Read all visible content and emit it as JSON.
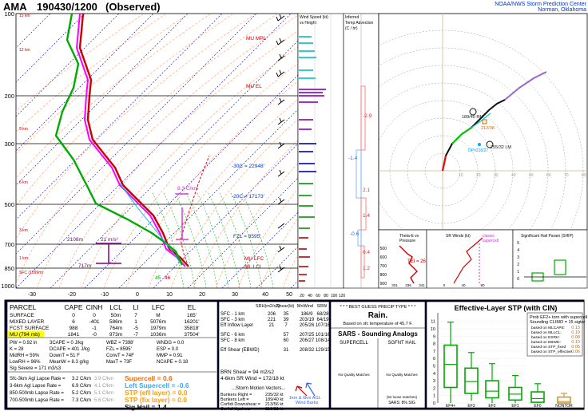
{
  "header": {
    "station": "AMA",
    "datetime": "190430/1200",
    "status": "(Observed)",
    "org_line1": "NOAA/NWS Storm Prediction Center",
    "org_line2": "Norman, Oklahoma"
  },
  "skewt": {
    "pressure_labels": [
      "100",
      "200",
      "300",
      "500",
      "700",
      "850",
      "1000"
    ],
    "temp_labels": [
      "-30",
      "-20",
      "-10",
      "0",
      "10",
      "20",
      "30",
      "40",
      "50"
    ],
    "height_labels": [
      "15 km",
      "12 km",
      "9 km",
      "6 km",
      "3 km",
      "1 km"
    ],
    "sfc_label": "SFC (1099m)",
    "annotations": {
      "mu_mpl": "MU MPL",
      "mu_el": "MU EL",
      "iso30": "-30C = 22948'",
      "iso20": "-20C = 17173'",
      "fzl": "FZL = 8595'",
      "mu_lfc": "MU LFC",
      "ml_lcl": "ML LCL",
      "cape_rate_top": "8.3 C/km",
      "cape_rate_low": "21 m/s²",
      "h2108": "2108m",
      "h717": "717m",
      "td_label": "45",
      "t_label": "46"
    }
  },
  "wind_panel": {
    "title_l1": "Wind Speed (kt)",
    "title_l2": "vs Height",
    "ticks": [
      "20",
      "40",
      "60",
      "80",
      "100",
      "120"
    ]
  },
  "advection_panel": {
    "title_l1": "Inferred",
    "title_l2": "Temp Advection",
    "title_l3": "(C / hr)",
    "values": [
      "-2.9",
      "-1.4",
      "2.1",
      "1.4",
      "-0.6",
      "0.4",
      "1.2"
    ]
  },
  "hodograph": {
    "ring_labels": [
      "10",
      "20",
      "30",
      "40",
      "50",
      "60",
      "70",
      "80"
    ],
    "bunkers_r": "189/40 RM",
    "lm": "255/32 LM",
    "srh_pt": "212/38",
    "dp_label": "DP=218/27"
  },
  "theta_panel": {
    "title_l1": "Theta-E vs",
    "title_l2": "Pressure",
    "x_ticks": [
      "331",
      "336",
      "341"
    ],
    "y_ticks": [
      "500",
      "600",
      "700",
      "800",
      "900"
    ],
    "value": "TEI = 26"
  },
  "sr_panel": {
    "title": "SR Winds (kt)",
    "label_l1": "classic",
    "label_l2": "supercell",
    "x_ticks": [
      "0",
      "40",
      "80"
    ]
  },
  "ship_panel": {
    "title": "Significant Hail Param (SHIP)",
    "y_ticks": [
      "5",
      "4",
      "3",
      "2",
      "1",
      "0"
    ]
  },
  "parcel_table": {
    "headers": [
      "PARCEL",
      "CAPE",
      "CINH",
      "LCL",
      "LI",
      "LFC",
      "EL"
    ],
    "rows": [
      [
        "SURFACE",
        "0",
        "0",
        "50m",
        "7",
        "M",
        "165'"
      ],
      [
        "MIXED LAYER",
        "6",
        "-401",
        "586m",
        "1",
        "5076m",
        "16201'"
      ],
      [
        "FCST SURFACE",
        "988",
        "-1",
        "764m",
        "-5",
        "1979m",
        "35818'"
      ],
      [
        "MU (794 mb)",
        "1841",
        "-0",
        "973m",
        "-7",
        "1036m",
        "37504'"
      ]
    ],
    "indices": [
      [
        "PW = 0.92 in",
        "3CAPE = 0 J/kg",
        "WBZ = 7398'",
        "WNDG = 0.0"
      ],
      [
        "K = 28",
        "DCAPE = 401 J/kg",
        "FZL = 8595'",
        "ESP = 0.0"
      ],
      [
        "MidRH = 59%",
        "DownT = 51 F",
        "ConvT = 74F",
        "MMP = 0.91"
      ],
      [
        "LowRH = 96%",
        "MeanW = 8.3 g/kg",
        "MaxT = 73F",
        "NCAPE = 0.18"
      ]
    ],
    "sig_severe": "Sig Severe = 171 m3/s3",
    "lapse": [
      [
        "Sfc-3km Agl Lapse Rate =",
        "3.2 C/km",
        "3.9 C/km"
      ],
      [
        "3-6km Agl Lapse Rate =",
        "6.9 C/km",
        "4.1 C/km"
      ],
      [
        "850-500mb Lapse Rate =",
        "5.2 C/km",
        "5.1 C/km"
      ],
      [
        "700-500mb Lapse Rate =",
        "7.3 C/km",
        "5.6 C/km"
      ]
    ],
    "composites": [
      {
        "label": "Supercell = 0.6",
        "color": "#ff6600"
      },
      {
        "label": "Left Supercell = -0.6",
        "color": "#33aaff"
      },
      {
        "label": "STP (eff layer) = 0.0",
        "color": "#ff9900"
      },
      {
        "label": "STP (fix layer) = 0.0",
        "color": "#ff9900"
      },
      {
        "label": "Sig Hail = 1.4",
        "color": "#111111"
      }
    ]
  },
  "kinematics": {
    "headers": [
      "SRH(m2/s2)",
      "Shear(kt)",
      "MnWind",
      "SRW"
    ],
    "rows": [
      [
        "SFC - 1 km",
        "206",
        "35",
        "186/9",
        "68/28"
      ],
      [
        "SFC - 3 km",
        "221",
        "39",
        "203/19",
        "64/19"
      ],
      [
        "Eff Inflow Layer",
        "21",
        "7",
        "205/26",
        "107/16"
      ],
      [
        "SFC - 6 km",
        "",
        "57",
        "207/25",
        "101/16"
      ],
      [
        "SFC - 8 km",
        "",
        "60",
        "206/27",
        "108/14"
      ],
      [
        "Eff Shear (EBWD)",
        "",
        "31",
        "208/32",
        "129/15"
      ]
    ],
    "brn": "BRN Shear = 94 m2/s2",
    "sr_wind": "4-6km SR Wind =     172/18 kt",
    "smv_title": "...Storm Motion Vectors...",
    "motions": [
      [
        "Bunkers Right =",
        "235/32 kt"
      ],
      [
        "Bunkers Left =",
        "189/40 kt"
      ],
      [
        "Corfidi Downshear =",
        "213/56 kt"
      ],
      [
        "Corfidi Upshear =",
        "218/21 kt"
      ]
    ],
    "barb_legend_l1": "1km & 6km AGL",
    "barb_legend_l2": "Wind Barbs"
  },
  "precip": {
    "title": "* * * BEST GUESS PRECIP TYPE * * *",
    "type": "Rain.",
    "basis": "Based on sfc temperature of 45.7 F.",
    "sars_title": "SARS - Sounding Analogs",
    "col1": "SUPERCELL",
    "col2": "SGFNT HAIL",
    "no_match1": "No Quality Matches",
    "no_match2": "No Quality Matches",
    "loose": "(52 loose matches)",
    "sars_sig": "SARS: 8% SIG"
  },
  "stp_panel": {
    "title": "Effective-Layer STP (with CIN)",
    "prob_l1": "Prob EF2+ torn with supercell",
    "prob_l2": "Sounding CLIMO = 15 sigtor",
    "based": [
      {
        "label": "based on MLCAPE:",
        "value": "0.13"
      },
      {
        "label": "based on MLLCL:",
        "value": "0.19"
      },
      {
        "label": "based on ESRH:",
        "value": "0.08"
      },
      {
        "label": "based on EBWD:",
        "value": "0.10"
      },
      {
        "label": "based on STP_fixed",
        "value": "0.05"
      },
      {
        "label": "based on STP_effective",
        "value": "0.06"
      }
    ],
    "y_ticks": [
      "11",
      "10",
      "9",
      "8",
      "7",
      "6",
      "5",
      "4",
      "3",
      "2",
      "1",
      "0"
    ],
    "categories": [
      "EF4+",
      "EF3",
      "EF2",
      "EF1",
      "EF0",
      "NONTOR"
    ],
    "boxes": [
      {
        "min": 0.0,
        "q1": 2.1,
        "median": 5.2,
        "q3": 7.8,
        "max": 10.9
      },
      {
        "min": 0.3,
        "q1": 1.3,
        "median": 2.9,
        "q3": 4.7,
        "max": 6.8
      },
      {
        "min": 0.0,
        "q1": 0.7,
        "median": 1.6,
        "q3": 3.0,
        "max": 5.3
      },
      {
        "min": 0.0,
        "q1": 0.4,
        "median": 1.2,
        "q3": 2.1,
        "max": 3.7
      },
      {
        "min": 0.0,
        "q1": 0.1,
        "median": 0.6,
        "q3": 1.5,
        "max": 2.6
      },
      {
        "min": 0.0,
        "q1": 0.0,
        "median": 0.2,
        "q3": 0.8,
        "max": 1.3
      }
    ]
  }
}
